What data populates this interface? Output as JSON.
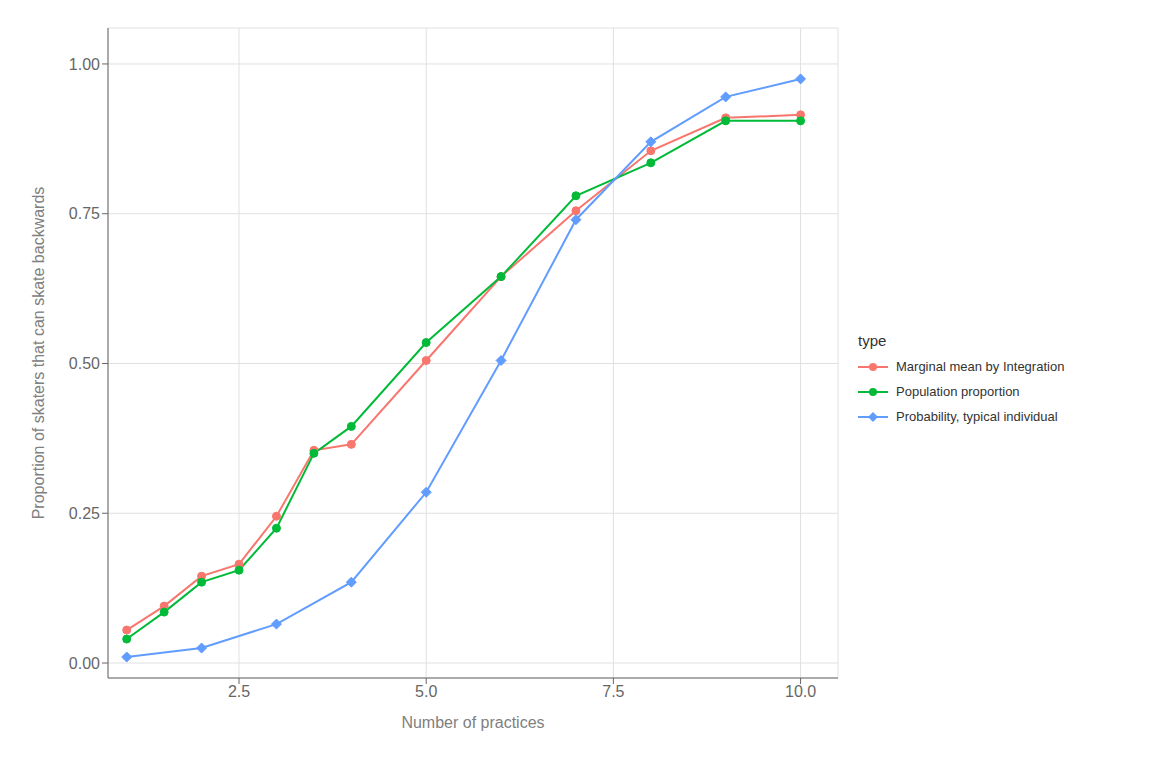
{
  "chart_data": {
    "type": "line",
    "x_label": "Number of practices",
    "y_label": "Proportion of skaters that can skate backwards",
    "legend_title": "type",
    "legend": "right",
    "grid": true,
    "xlim": [
      0.75,
      10.5
    ],
    "xticks": [
      2.5,
      {
        "value": 5,
        "label": "5.0"
      },
      7.5,
      {
        "value": 10,
        "label": "10.0"
      }
    ],
    "ylim": [
      -0.025,
      1.06
    ],
    "yticks": [
      {
        "value": 0,
        "label": "0.00"
      },
      {
        "value": 0.25,
        "label": "0.25"
      },
      {
        "value": 0.5,
        "label": "0.50"
      },
      {
        "value": 0.75,
        "label": "0.75"
      },
      {
        "value": 1,
        "label": "1.00"
      }
    ],
    "series": [
      {
        "name": "Marginal mean by Integration",
        "color": "#F8766D",
        "marker": "circle",
        "x": [
          1,
          1.5,
          2,
          2.5,
          3,
          3.5,
          4,
          5,
          6,
          7,
          8,
          9,
          10
        ],
        "values": [
          0.055,
          0.095,
          0.145,
          0.165,
          0.245,
          0.355,
          0.365,
          0.505,
          0.645,
          0.755,
          0.855,
          0.91,
          0.915
        ]
      },
      {
        "name": "Population proportion",
        "color": "#00BA38",
        "marker": "circle",
        "x": [
          1,
          1.5,
          2,
          2.5,
          3,
          3.5,
          4,
          5,
          6,
          7,
          8,
          9,
          10
        ],
        "values": [
          0.04,
          0.085,
          0.135,
          0.155,
          0.225,
          0.35,
          0.395,
          0.535,
          0.645,
          0.78,
          0.835,
          0.905,
          0.905
        ]
      },
      {
        "name": "Probability, typical individual",
        "color": "#619CFF",
        "marker": "diamond",
        "x": [
          1,
          2,
          3,
          4,
          5,
          6,
          7,
          8,
          9,
          10
        ],
        "values": [
          0.01,
          0.025,
          0.065,
          0.135,
          0.285,
          0.505,
          0.74,
          0.87,
          0.945,
          0.975
        ]
      }
    ]
  }
}
